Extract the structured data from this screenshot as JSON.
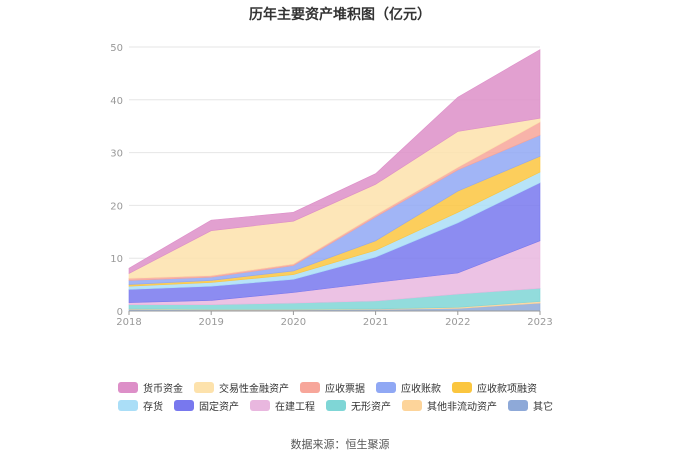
{
  "title": "历年主要资产堆积图（亿元）",
  "source": "数据来源：恒生聚源",
  "chart_data": {
    "type": "area",
    "stacked": true,
    "title": "历年主要资产堆积图（亿元）",
    "xlabel": "",
    "ylabel": "",
    "ylim": [
      0,
      50
    ],
    "yticks": [
      0,
      10,
      20,
      30,
      40,
      50
    ],
    "grid": true,
    "legend_position": "bottom",
    "categories": [
      "2018",
      "2019",
      "2020",
      "2021",
      "2022",
      "2023"
    ],
    "series": [
      {
        "name": "其它",
        "color": "#8ea9d8",
        "values": [
          0.3,
          0.2,
          0.2,
          0.3,
          0.5,
          1.5
        ]
      },
      {
        "name": "其他非流动资产",
        "color": "#fdd49a",
        "values": [
          0.1,
          0.1,
          0.1,
          0.1,
          0.2,
          0.3
        ]
      },
      {
        "name": "无形资产",
        "color": "#7fd6d6",
        "values": [
          0.8,
          0.9,
          1.2,
          1.5,
          2.5,
          2.5
        ]
      },
      {
        "name": "在建工程",
        "color": "#e9b7df",
        "values": [
          0.4,
          0.8,
          2.0,
          3.5,
          4.0,
          9.0
        ]
      },
      {
        "name": "固定资产",
        "color": "#7878ee",
        "values": [
          2.5,
          2.7,
          2.5,
          4.8,
          9.5,
          11.0
        ]
      },
      {
        "name": "存货",
        "color": "#aadef7",
        "values": [
          0.6,
          0.7,
          0.9,
          1.3,
          2.0,
          2.0
        ]
      },
      {
        "name": "应收款项融资",
        "color": "#fbc63f",
        "values": [
          0.3,
          0.4,
          0.7,
          1.8,
          4.0,
          3.0
        ]
      },
      {
        "name": "应收账款",
        "color": "#90a8f4",
        "values": [
          0.8,
          0.6,
          1.0,
          4.5,
          4.0,
          4.0
        ]
      },
      {
        "name": "应收票据",
        "color": "#f7a69a",
        "values": [
          0.4,
          0.3,
          0.3,
          0.4,
          0.5,
          2.5
        ]
      },
      {
        "name": "交易性金融资产",
        "color": "#fde2ac",
        "values": [
          0.9,
          8.5,
          8.1,
          5.8,
          6.8,
          0.7
        ]
      },
      {
        "name": "货币资金",
        "color": "#dd8fc8",
        "values": [
          1.0,
          2.0,
          1.7,
          2.0,
          6.5,
          13.0
        ]
      }
    ],
    "legend_order": [
      "货币资金",
      "交易性金融资产",
      "应收票据",
      "应收账款",
      "应收款项融资",
      "存货",
      "固定资产",
      "在建工程",
      "无形资产",
      "其他非流动资产",
      "其它"
    ]
  }
}
